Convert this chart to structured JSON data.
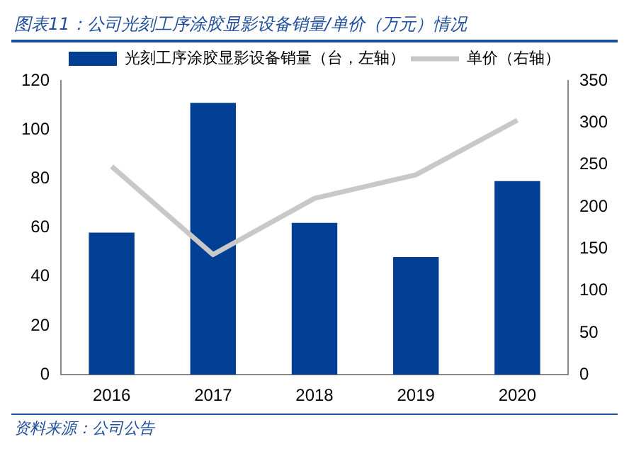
{
  "chart_data": {
    "type": "bar",
    "title": "图表11：公司光刻工序涂胶显影设备销量/单价（万元）情况",
    "categories": [
      "2016",
      "2017",
      "2018",
      "2019",
      "2020"
    ],
    "series": [
      {
        "name": "光刻工序涂胶显影设备销量（台，左轴）",
        "color": "#003f94",
        "values": [
          58,
          111,
          62,
          48,
          79
        ]
      },
      {
        "name": "单价（右轴）",
        "type": "line",
        "axis": "y2",
        "color": "#c8c8c8",
        "values": [
          248,
          143,
          210,
          238,
          303
        ]
      }
    ],
    "ylim": [
      0,
      120
    ],
    "yticks": [
      0,
      20,
      40,
      60,
      80,
      100,
      120
    ],
    "y2lim": [
      0,
      350
    ],
    "y2ticks": [
      0,
      50,
      100,
      150,
      200,
      250,
      300,
      350
    ],
    "grid": false,
    "legend": "top",
    "marker": "none",
    "annotations": [
      "资料来源：公司公告"
    ]
  }
}
